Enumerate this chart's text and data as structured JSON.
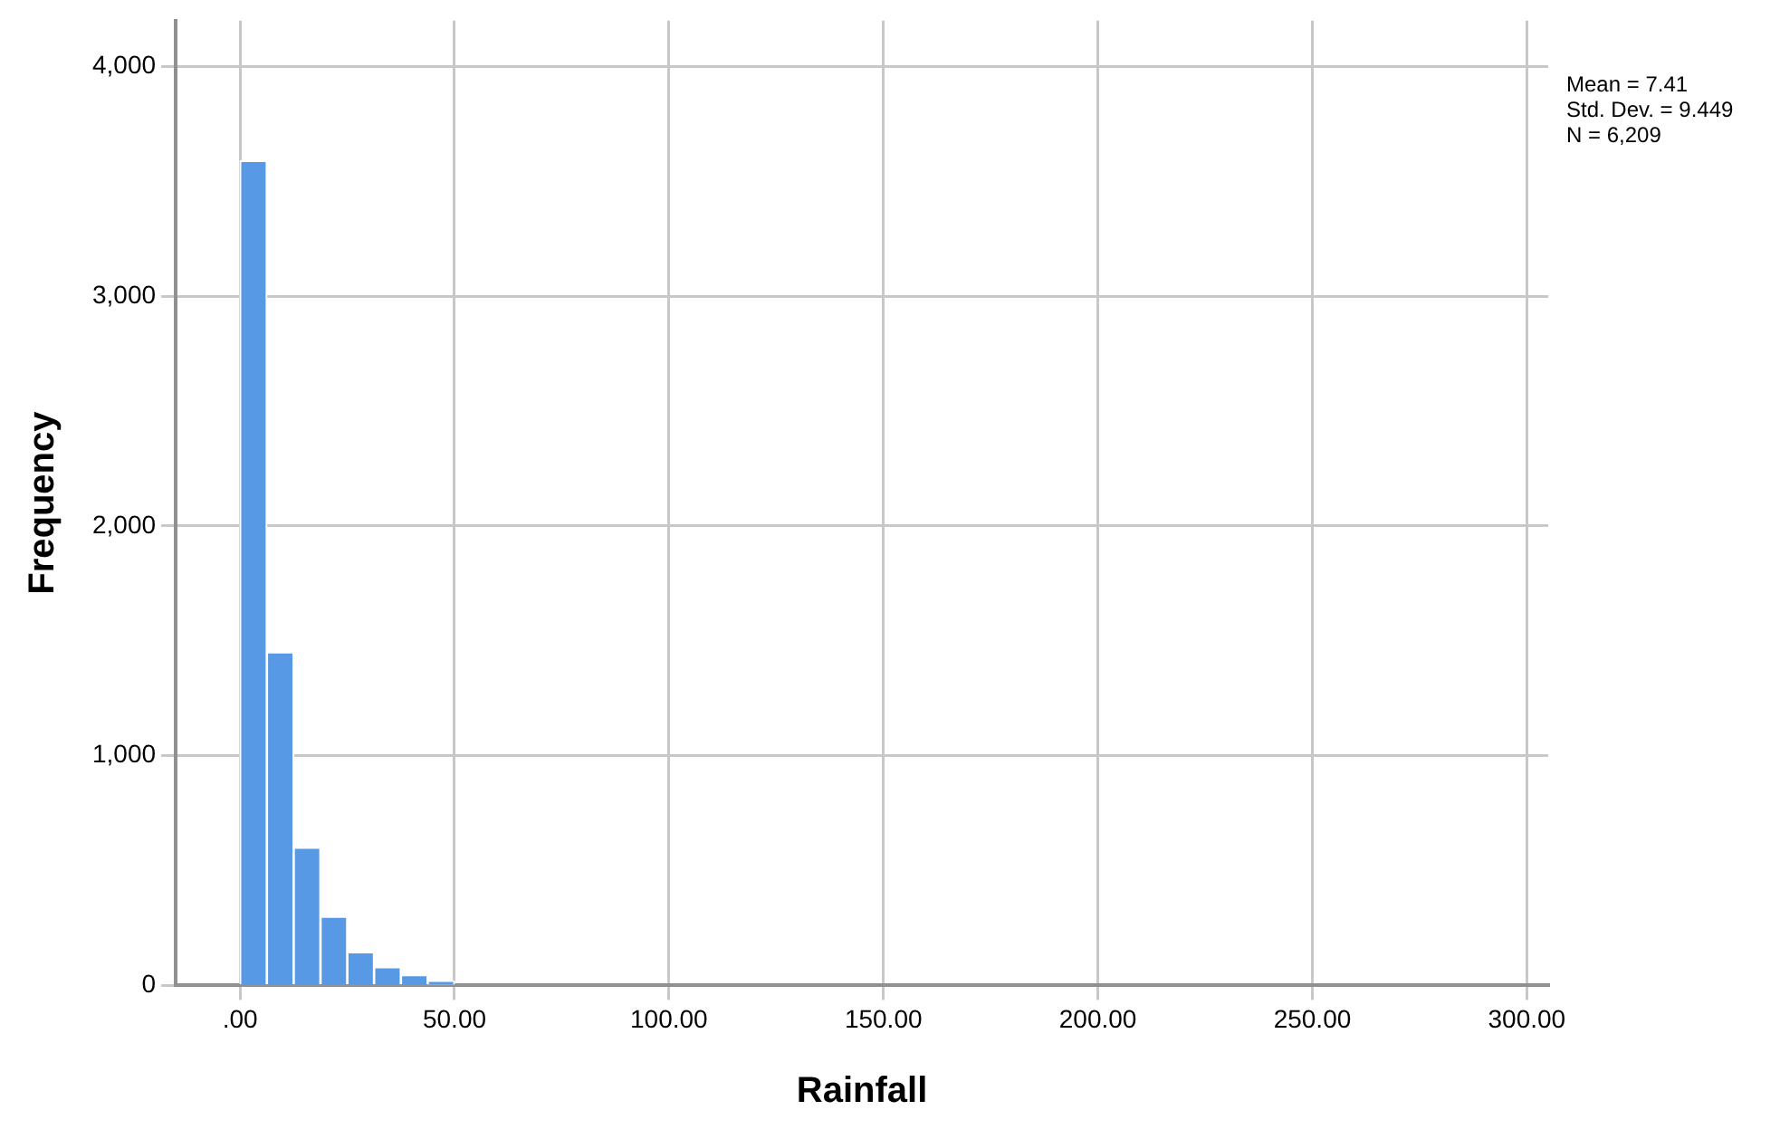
{
  "chart_data": {
    "type": "histogram",
    "xlabel": "Rainfall",
    "ylabel": "Frequency",
    "bins": [
      0,
      6.25,
      12.5,
      18.75,
      25,
      31.25,
      37.5,
      43.75,
      50,
      56.25,
      62.5,
      68.75,
      75,
      81.25,
      87.5,
      93.75,
      100,
      106.25,
      112.5,
      118.75,
      125,
      131.25,
      137.5,
      143.75,
      150,
      156.25,
      162.5,
      168.75,
      175,
      181.25,
      187.5,
      193.75,
      200,
      206.25,
      212.5,
      218.75,
      225,
      231.25,
      237.5,
      243.75,
      250,
      256.25,
      262.5,
      268.75,
      275,
      281.25,
      287.5,
      293.75,
      300
    ],
    "values": [
      3590,
      1450,
      600,
      300,
      145,
      80,
      45,
      20,
      0,
      0,
      0,
      0,
      0,
      0,
      0,
      0,
      0,
      0,
      0,
      0,
      0,
      0,
      0,
      0,
      0,
      0,
      0,
      0,
      0,
      0,
      0,
      0,
      0,
      0,
      0,
      0,
      0,
      0,
      0,
      0,
      0,
      0,
      0,
      0,
      0,
      0,
      0,
      0
    ],
    "color": "#5899e5",
    "xlim": [
      -15,
      305
    ],
    "xticks": [
      {
        "value": 0,
        "label": ".00"
      },
      {
        "value": 50,
        "label": "50.00"
      },
      {
        "value": 100,
        "label": "100.00"
      },
      {
        "value": 150,
        "label": "150.00"
      },
      {
        "value": 200,
        "label": "200.00"
      },
      {
        "value": 250,
        "label": "250.00"
      },
      {
        "value": 300,
        "label": "300.00"
      }
    ],
    "ylim": [
      0,
      4200
    ],
    "yticks": [
      {
        "value": 0,
        "label": "0"
      },
      {
        "value": 1000,
        "label": "1,000"
      },
      {
        "value": 2000,
        "label": "2,000"
      },
      {
        "value": 3000,
        "label": "3,000"
      },
      {
        "value": 4000,
        "label": "4,000"
      }
    ],
    "grid": true,
    "annotations": [
      "Mean = 7.41",
      "Std. Dev. = 9.449",
      "N = 6,209"
    ]
  }
}
